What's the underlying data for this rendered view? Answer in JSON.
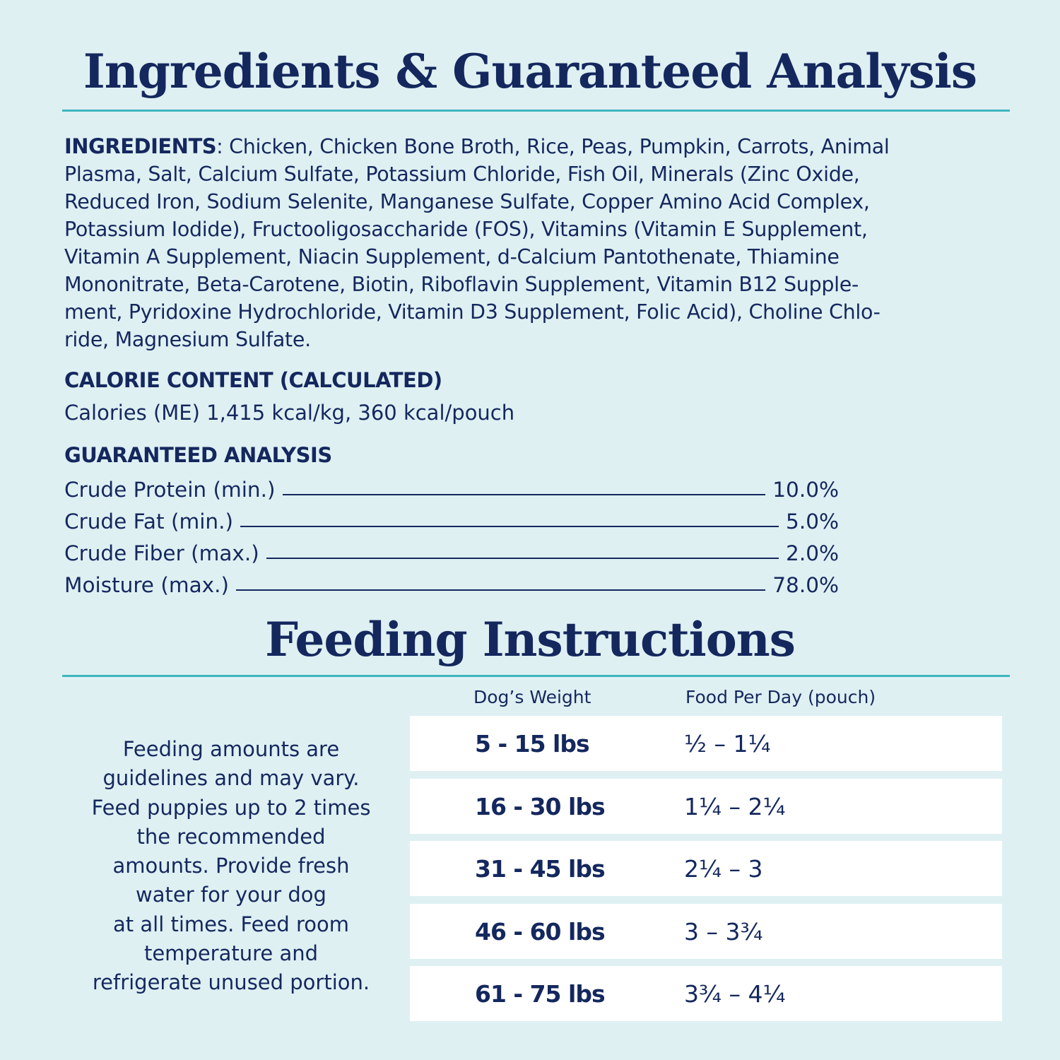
{
  "colors": {
    "background": "#dff0f3",
    "text": "#14285e",
    "accent_rule": "#3fb5bd",
    "row_background": "#ffffff"
  },
  "analysis_title": "Ingredients & Guaranteed Analysis",
  "ingredients": {
    "label": "INGREDIENTS",
    "lines": [
      ": Chicken, Chicken Bone Broth, Rice, Peas, Pumpkin, Carrots, Animal",
      "Plasma, Salt, Calcium Sulfate, Potassium Chloride, Fish Oil, Minerals (Zinc Oxide,",
      "Reduced Iron, Sodium Selenite, Manganese Sulfate, Copper Amino Acid Complex,",
      "Potassium Iodide), Fructooligosaccharide (FOS), Vitamins (Vitamin E Supplement,",
      "Vitamin A Supplement, Niacin Supplement, d-Calcium Pantothenate, Thiamine",
      "Mononitrate, Beta-Carotene, Biotin, Riboflavin Supplement, Vitamin B12 Supple-",
      "ment, Pyridoxine Hydrochloride, Vitamin D3 Supplement, Folic Acid), Choline Chlo-",
      "ride, Magnesium Sulfate."
    ]
  },
  "calorie": {
    "heading": "CALORIE CONTENT (CALCULATED)",
    "text": "Calories (ME) 1,415 kcal/kg, 360 kcal/pouch"
  },
  "guaranteed": {
    "heading": "GUARANTEED ANALYSIS",
    "rows": [
      {
        "label": "Crude Protein (min.)",
        "value": "10.0%"
      },
      {
        "label": "Crude Fat (min.)",
        "value": "5.0%"
      },
      {
        "label": "Crude Fiber (max.)",
        "value": "2.0%"
      },
      {
        "label": "Moisture (max.)",
        "value": "78.0%"
      }
    ]
  },
  "feeding": {
    "title": "Feeding Instructions",
    "note_lines": [
      "Feeding amounts are",
      "guidelines and may vary.",
      "Feed puppies up to 2 times",
      "the recommended",
      "amounts. Provide fresh",
      "water for your dog",
      "at all times. Feed room",
      "temperature and",
      "refrigerate unused portion."
    ],
    "columns": [
      "Dog’s Weight",
      "Food Per Day (pouch)"
    ],
    "rows": [
      {
        "weight": "5 - 15 lbs",
        "food": "½ – 1¼"
      },
      {
        "weight": "16 - 30 lbs",
        "food": "1¼ – 2¼"
      },
      {
        "weight": "31 - 45 lbs",
        "food": "2¼ – 3"
      },
      {
        "weight": "46 - 60 lbs",
        "food": "3 – 3¾"
      },
      {
        "weight": "61 - 75 lbs",
        "food": "3¾ – 4¼"
      }
    ]
  }
}
